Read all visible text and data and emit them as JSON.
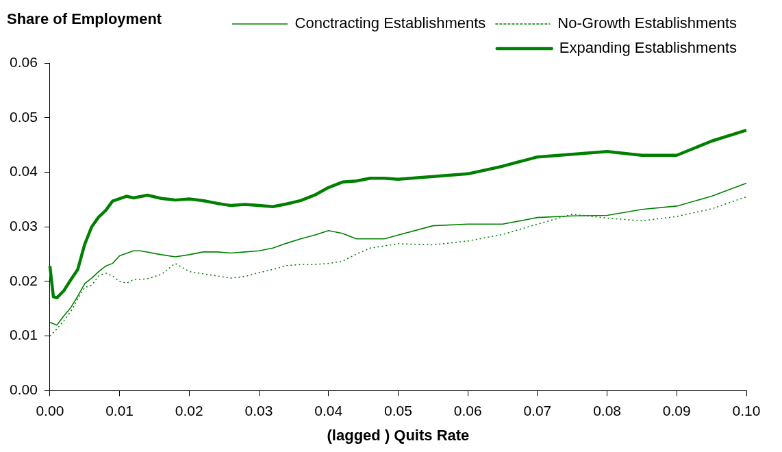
{
  "chart_data": {
    "type": "line",
    "ylabel": "Share of Employment",
    "xlabel": "(lagged ) Quits Rate",
    "xlim": [
      0,
      0.1
    ],
    "ylim": [
      0,
      0.06
    ],
    "xticks": [
      {
        "value": 0,
        "label": "0.00"
      },
      {
        "value": 0.01,
        "label": "0.01"
      },
      {
        "value": 0.02,
        "label": "0.02"
      },
      {
        "value": 0.03,
        "label": "0.03"
      },
      {
        "value": 0.04,
        "label": "0.04"
      },
      {
        "value": 0.05,
        "label": "0.05"
      },
      {
        "value": 0.06,
        "label": "0.06"
      },
      {
        "value": 0.07,
        "label": "0.07"
      },
      {
        "value": 0.08,
        "label": "0.08"
      },
      {
        "value": 0.09,
        "label": "0.09"
      },
      {
        "value": 0.1,
        "label": "0.10"
      }
    ],
    "yticks": [
      {
        "value": 0,
        "label": "0.00"
      },
      {
        "value": 0.01,
        "label": "0.01"
      },
      {
        "value": 0.02,
        "label": "0.02"
      },
      {
        "value": 0.03,
        "label": "0.03"
      },
      {
        "value": 0.04,
        "label": "0.04"
      },
      {
        "value": 0.05,
        "label": "0.05"
      },
      {
        "value": 0.06,
        "label": "0.06"
      }
    ],
    "grid": false,
    "legend": "top",
    "marker": "none",
    "series": [
      {
        "name": "Conctracting Establishments",
        "color": "#008000",
        "line_style": "solid",
        "x": [
          0,
          0.001,
          0.002,
          0.003,
          0.004,
          0.005,
          0.006,
          0.007,
          0.008,
          0.009,
          0.01,
          0.012,
          0.013,
          0.016,
          0.018,
          0.02,
          0.022,
          0.024,
          0.026,
          0.028,
          0.03,
          0.032,
          0.034,
          0.036,
          0.038,
          0.04,
          0.042,
          0.044,
          0.048,
          0.05,
          0.055,
          0.06,
          0.065,
          0.07,
          0.075,
          0.08,
          0.085,
          0.09,
          0.095,
          0.1
        ],
        "values": [
          0.0125,
          0.012,
          0.0137,
          0.0152,
          0.0173,
          0.0196,
          0.0206,
          0.0218,
          0.0228,
          0.0233,
          0.0247,
          0.0256,
          0.0256,
          0.0249,
          0.0245,
          0.0249,
          0.0254,
          0.0254,
          0.0252,
          0.0254,
          0.0256,
          0.0261,
          0.027,
          0.0278,
          0.0285,
          0.0293,
          0.0288,
          0.0278,
          0.0278,
          0.0285,
          0.0302,
          0.0305,
          0.0305,
          0.0317,
          0.032,
          0.0321,
          0.0332,
          0.0338,
          0.0356,
          0.038
        ]
      },
      {
        "name": "No-Growth Establishments",
        "color": "#008000",
        "line_style": "dotted",
        "x": [
          0,
          0.001,
          0.002,
          0.003,
          0.004,
          0.005,
          0.006,
          0.007,
          0.008,
          0.009,
          0.01,
          0.011,
          0.012,
          0.014,
          0.016,
          0.018,
          0.02,
          0.022,
          0.024,
          0.026,
          0.028,
          0.03,
          0.032,
          0.034,
          0.036,
          0.038,
          0.04,
          0.042,
          0.044,
          0.046,
          0.048,
          0.05,
          0.055,
          0.06,
          0.065,
          0.07,
          0.075,
          0.08,
          0.085,
          0.09,
          0.095,
          0.1
        ],
        "values": [
          0.01,
          0.0113,
          0.0128,
          0.0145,
          0.0168,
          0.0189,
          0.0193,
          0.021,
          0.0215,
          0.021,
          0.02,
          0.0197,
          0.0203,
          0.0205,
          0.0213,
          0.0233,
          0.0218,
          0.0214,
          0.021,
          0.0206,
          0.0209,
          0.0216,
          0.0222,
          0.0229,
          0.0231,
          0.0231,
          0.0233,
          0.0237,
          0.025,
          0.0261,
          0.0265,
          0.0269,
          0.0267,
          0.0274,
          0.0286,
          0.0305,
          0.0323,
          0.0316,
          0.0311,
          0.0319,
          0.0333,
          0.0355
        ]
      },
      {
        "name": "Expanding Establishments",
        "color": "#008000",
        "line_style": "solid",
        "x": [
          0,
          0.0005,
          0.001,
          0.002,
          0.003,
          0.004,
          0.005,
          0.006,
          0.007,
          0.008,
          0.009,
          0.011,
          0.012,
          0.014,
          0.016,
          0.018,
          0.02,
          0.022,
          0.024,
          0.026,
          0.028,
          0.03,
          0.032,
          0.034,
          0.036,
          0.038,
          0.04,
          0.042,
          0.044,
          0.046,
          0.048,
          0.05,
          0.055,
          0.06,
          0.065,
          0.07,
          0.075,
          0.08,
          0.085,
          0.09,
          0.095,
          0.1
        ],
        "values": [
          0.0228,
          0.0172,
          0.017,
          0.0183,
          0.0203,
          0.0222,
          0.0268,
          0.03,
          0.0318,
          0.033,
          0.0347,
          0.0356,
          0.0353,
          0.0358,
          0.0352,
          0.0349,
          0.0351,
          0.0348,
          0.0343,
          0.0339,
          0.0341,
          0.0339,
          0.0337,
          0.0342,
          0.0348,
          0.0358,
          0.0372,
          0.0382,
          0.0384,
          0.0389,
          0.0389,
          0.0387,
          0.0392,
          0.0397,
          0.0411,
          0.0428,
          0.0433,
          0.0438,
          0.0431,
          0.0431,
          0.0457,
          0.0477
        ]
      }
    ]
  }
}
